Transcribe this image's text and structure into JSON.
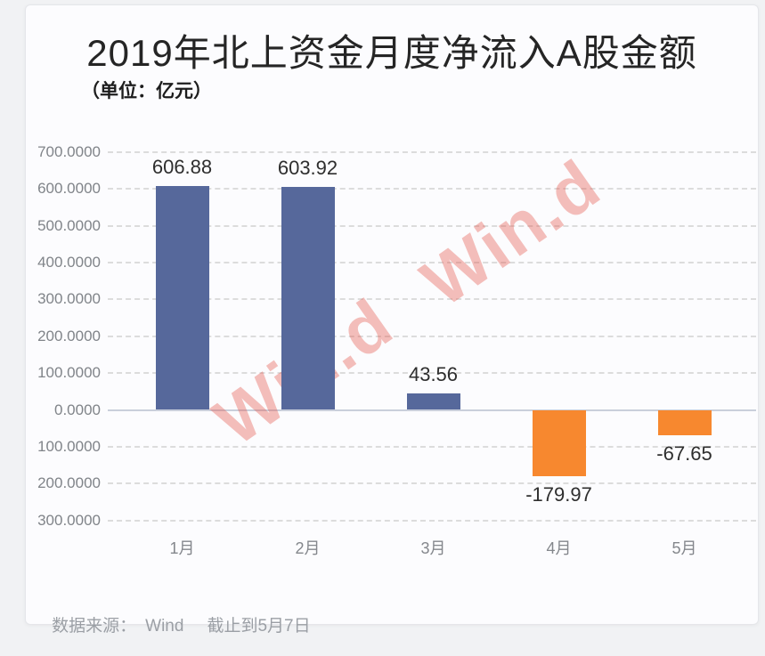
{
  "page": {
    "background": "#f1f2f4"
  },
  "header": {
    "title": "2019年北上资金月度净流入A股金额",
    "subtitle": "（单位：亿元）"
  },
  "watermark": {
    "text": "Win.d"
  },
  "footer": {
    "source_label": "数据来源：",
    "source_value": "Wind",
    "note": "截止到5月7日"
  },
  "chart_data": {
    "type": "bar",
    "title": "2019年北上资金月度净流入A股金额",
    "unit": "亿元",
    "categories": [
      "1月",
      "2月",
      "3月",
      "4月",
      "5月"
    ],
    "values": [
      606.88,
      603.92,
      43.56,
      -179.97,
      -67.65
    ],
    "value_labels": [
      "606.88",
      "603.92",
      "43.56",
      "-179.97",
      "-67.65"
    ],
    "ylim": [
      -300,
      700
    ],
    "ytick_interval": 100,
    "ytick_labels": [
      "700.0000",
      "600.0000",
      "500.0000",
      "400.0000",
      "300.0000",
      "200.0000",
      "100.0000",
      "0.0000",
      "100.0000",
      "200.0000",
      "300.0000"
    ],
    "grid": "horizontal-dashed",
    "legend": "none",
    "positive_color": "#56689B",
    "negative_color": "#F7882F",
    "source": "数据来源：Wind 截止到5月7日"
  }
}
